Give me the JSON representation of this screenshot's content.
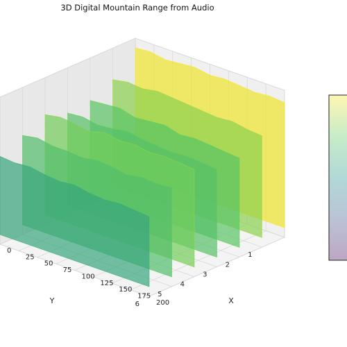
{
  "chart_data": {
    "type": "surface3d",
    "title": "3D Digital Mountain Range from Audio",
    "xlabel": "X",
    "ylabel": "Y",
    "x_ticks": [
      0,
      25,
      50,
      75,
      100,
      125,
      150,
      175,
      200
    ],
    "y_ticks": [
      1,
      2,
      3,
      4,
      5,
      6
    ],
    "xlim": [
      0,
      200
    ],
    "ylim": [
      0,
      6
    ],
    "colormap": "viridis",
    "alpha": 0.7,
    "colorbar": true,
    "colorbar_ticks": [],
    "ribbons": [
      {
        "y": 6,
        "heights": [
          0.62,
          0.61,
          0.62,
          0.6,
          0.59,
          0.6,
          0.58,
          0.57,
          0.58,
          0.57,
          0.56
        ]
      },
      {
        "y": 5,
        "heights": [
          0.7,
          0.72,
          0.7,
          0.7,
          0.69,
          0.71,
          0.7,
          0.68,
          0.7,
          0.69,
          0.7
        ]
      },
      {
        "y": 4,
        "heights": [
          0.78,
          0.8,
          0.79,
          0.77,
          0.8,
          0.78,
          0.79,
          0.77,
          0.78,
          0.77,
          0.76
        ]
      },
      {
        "y": 3,
        "heights": [
          0.72,
          0.73,
          0.71,
          0.72,
          0.74,
          0.72,
          0.71,
          0.7,
          0.71,
          0.7,
          0.69
        ]
      },
      {
        "y": 2,
        "heights": [
          0.74,
          0.75,
          0.76,
          0.73,
          0.74,
          0.75,
          0.72,
          0.73,
          0.72,
          0.71,
          0.7
        ]
      },
      {
        "y": 1,
        "heights": [
          0.82,
          0.84,
          0.83,
          0.85,
          0.84,
          0.83,
          0.82,
          0.81,
          0.82,
          0.8,
          0.79
        ]
      },
      {
        "y": 0,
        "heights": [
          0.98,
          0.99,
          0.97,
          0.98,
          0.99,
          0.97,
          0.98,
          0.97,
          0.96,
          0.97,
          0.96
        ]
      }
    ]
  }
}
